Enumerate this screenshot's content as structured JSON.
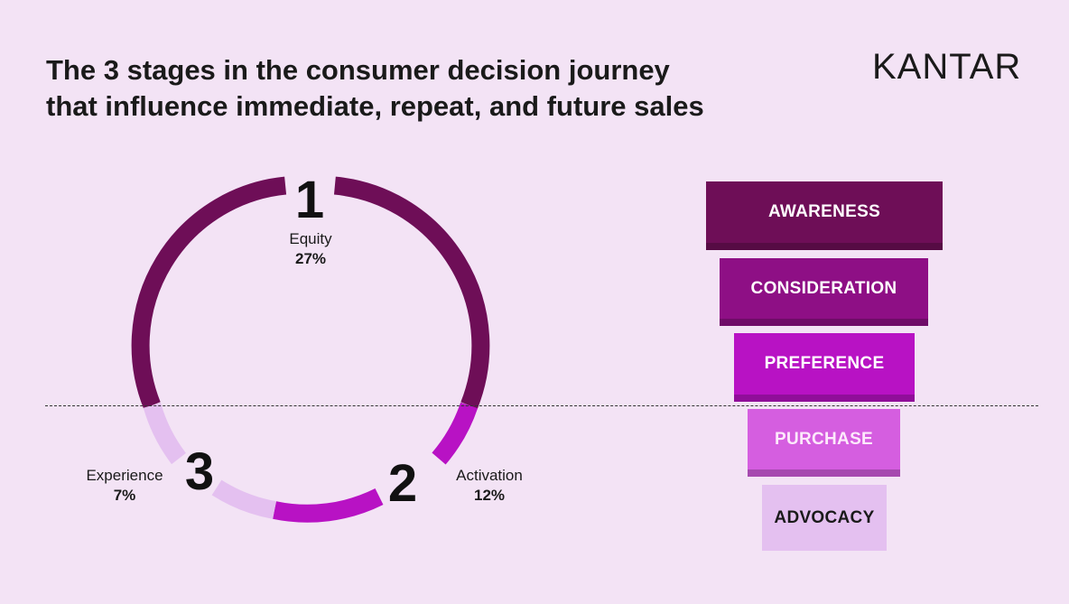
{
  "title": {
    "line1": "The 3 stages in the consumer decision journey",
    "line2": "that influence immediate, repeat, and future sales"
  },
  "brand": {
    "logo_text": "KANTAR"
  },
  "stages": [
    {
      "number": "1",
      "name": "Equity",
      "percent": "27%",
      "color": "#6e0e57"
    },
    {
      "number": "2",
      "name": "Activation",
      "percent": "12%",
      "color": "#b812c4"
    },
    {
      "number": "3",
      "name": "Experience",
      "percent": "7%",
      "color": "#e4c0f0"
    }
  ],
  "funnel": [
    {
      "label": "AWARENESS",
      "color": "#6e0e57",
      "text_color": "#ffffff"
    },
    {
      "label": "CONSIDERATION",
      "color": "#8e0f85",
      "text_color": "#ffffff"
    },
    {
      "label": "PREFERENCE",
      "color": "#b812c4",
      "text_color": "#ffffff"
    },
    {
      "label": "PURCHASE",
      "color": "#d55ee0",
      "text_color": "#fde9fb"
    },
    {
      "label": "ADVOCACY",
      "color": "#e4c0f0",
      "text_color": "#1a1a1a"
    }
  ]
}
